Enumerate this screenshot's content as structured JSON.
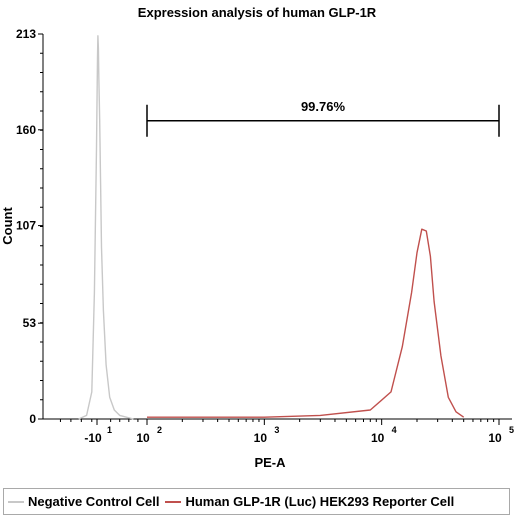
{
  "chart_data": {
    "type": "line",
    "title": "Expression analysis of human GLP-1R",
    "xlabel": "PE-A",
    "ylabel": "Count",
    "xscale": "log",
    "xlim": [
      -100,
      100000
    ],
    "ylim": [
      0,
      213
    ],
    "y_ticks": [
      "0",
      "53",
      "107",
      "160",
      "213"
    ],
    "x_ticks": [
      {
        "base": "-10",
        "exp": "1",
        "value": -10
      },
      {
        "base": "10",
        "exp": "2",
        "value": 100
      },
      {
        "base": "10",
        "exp": "3",
        "value": 1000
      },
      {
        "base": "10",
        "exp": "4",
        "value": 10000
      },
      {
        "base": "10",
        "exp": "5",
        "value": 100000
      }
    ],
    "gate": {
      "label": "99.76%",
      "x_start": 100,
      "x_end": 100000,
      "y": 165
    },
    "legend_position": "bottom",
    "series": [
      {
        "name": "Negative Control Cell",
        "color": "#c8c8c8",
        "x": [
          -45,
          -30,
          -20,
          -15,
          -11,
          -9,
          -8,
          -7,
          -6,
          -4,
          -2,
          0,
          4,
          10,
          18,
          28,
          40,
          55,
          70
        ],
        "y": [
          0,
          2,
          15,
          70,
          150,
          200,
          212,
          205,
          190,
          165,
          130,
          95,
          60,
          30,
          12,
          5,
          2,
          1,
          0
        ]
      },
      {
        "name": "Human GLP-1R (Luc) HEK293 Reporter Cell",
        "color": "#c0504d",
        "x": [
          100,
          300,
          1000,
          3000,
          8000,
          12000,
          15000,
          18000,
          20000,
          22000,
          24000,
          26000,
          28000,
          32000,
          37000,
          43000,
          50000
        ],
        "y": [
          1,
          1,
          1,
          2,
          5,
          15,
          40,
          70,
          92,
          105,
          104,
          90,
          65,
          35,
          12,
          4,
          1
        ]
      }
    ]
  }
}
